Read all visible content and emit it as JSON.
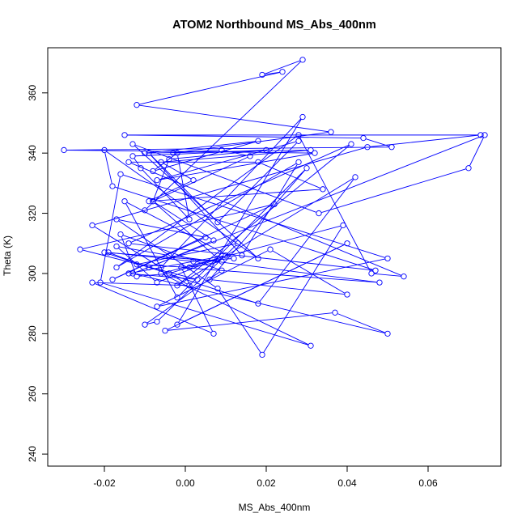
{
  "chart_data": {
    "type": "line",
    "title": "ATOM2 Northbound MS_Abs_400nm",
    "xlabel": "MS_Abs_400nm",
    "ylabel": "Theta (K)",
    "xlim": [
      -0.034,
      0.078
    ],
    "ylim": [
      236,
      375
    ],
    "x_ticks": [
      -0.02,
      0.0,
      0.02,
      0.04,
      0.06
    ],
    "x_tick_labels": [
      "-0.02",
      "0.00",
      "0.02",
      "0.04",
      "0.06"
    ],
    "y_ticks": [
      240,
      260,
      280,
      300,
      320,
      340,
      360
    ],
    "y_tick_labels": [
      "240",
      "260",
      "280",
      "300",
      "320",
      "340",
      "360"
    ],
    "grid": false,
    "legend": "none",
    "markers": "open-circle",
    "color": "#0000ff",
    "series": [
      {
        "x": [
          -0.01,
          0.029,
          0.019,
          0.024,
          -0.012,
          0.036,
          -0.003,
          0.009,
          0.016,
          -0.008,
          -0.004,
          0.02,
          -0.013,
          -0.011,
          0.001,
          -0.002,
          -0.008,
          0.018,
          -0.01,
          0.031,
          -0.006,
          0.002,
          -0.009,
          0.034,
          0.018,
          -0.014,
          0.054,
          0.046,
          0.028,
          -0.017,
          0.028,
          0.014,
          -0.009,
          0.008,
          0.028,
          -0.007,
          0.032,
          -0.03,
          0.051,
          0.044,
          -0.015,
          0.073,
          0.045,
          -0.023,
          -0.006,
          0.029,
          -0.002,
          0.04,
          -0.005,
          0.037,
          0.05,
          -0.013,
          0.074,
          0.07,
          0.033,
          -0.013,
          0.018,
          -0.02,
          -0.018,
          0.047,
          -0.014,
          0.041,
          -0.002,
          0.042,
          0.018,
          -0.02,
          0.009,
          0.001,
          -0.012,
          0.013,
          -0.007,
          -0.01,
          0.009,
          -0.016,
          -0.012,
          -0.004,
          0.008,
          -0.008,
          0.007,
          -0.009,
          -0.019,
          0.002,
          0.012,
          -0.015,
          -0.002,
          0.03,
          0.006,
          0.04,
          0.021,
          -0.007,
          0.05,
          -0.016,
          -0.021,
          0.031,
          -0.006,
          0.039,
          0.019,
          0.008,
          -0.017,
          0.005,
          -0.018,
          0.022,
          -0.026,
          0.003,
          -0.014,
          0.01,
          -0.007,
          -0.017,
          -0.004,
          0.048,
          -0.001,
          0.007,
          -0.023,
          0.001,
          -0.004
        ],
        "y": [
          321,
          371,
          366,
          367,
          356,
          347,
          340,
          341,
          339,
          324,
          338,
          341,
          339,
          335,
          318,
          340,
          334,
          344,
          340,
          341,
          337,
          331,
          324,
          328,
          337,
          337,
          299,
          300,
          346,
          302,
          337,
          306,
          340,
          317,
          344,
          331,
          340,
          341,
          342,
          345,
          346,
          346,
          342,
          316,
          302,
          352,
          283,
          310,
          281,
          287,
          280,
          300,
          346,
          335,
          320,
          343,
          305,
          341,
          329,
          301,
          310,
          343,
          296,
          332,
          290,
          307,
          304,
          302,
          303,
          310,
          284,
          283,
          301,
          313,
          299,
          300,
          305,
          324,
          311,
          302,
          307,
          304,
          305,
          324,
          292,
          335,
          298,
          293,
          308,
          289,
          305,
          333,
          297,
          276,
          300,
          316,
          273,
          295,
          318,
          312,
          298,
          323,
          308,
          298,
          300,
          306,
          297,
          309,
          306,
          297,
          302,
          280,
          297,
          296,
          300
        ]
      }
    ]
  }
}
